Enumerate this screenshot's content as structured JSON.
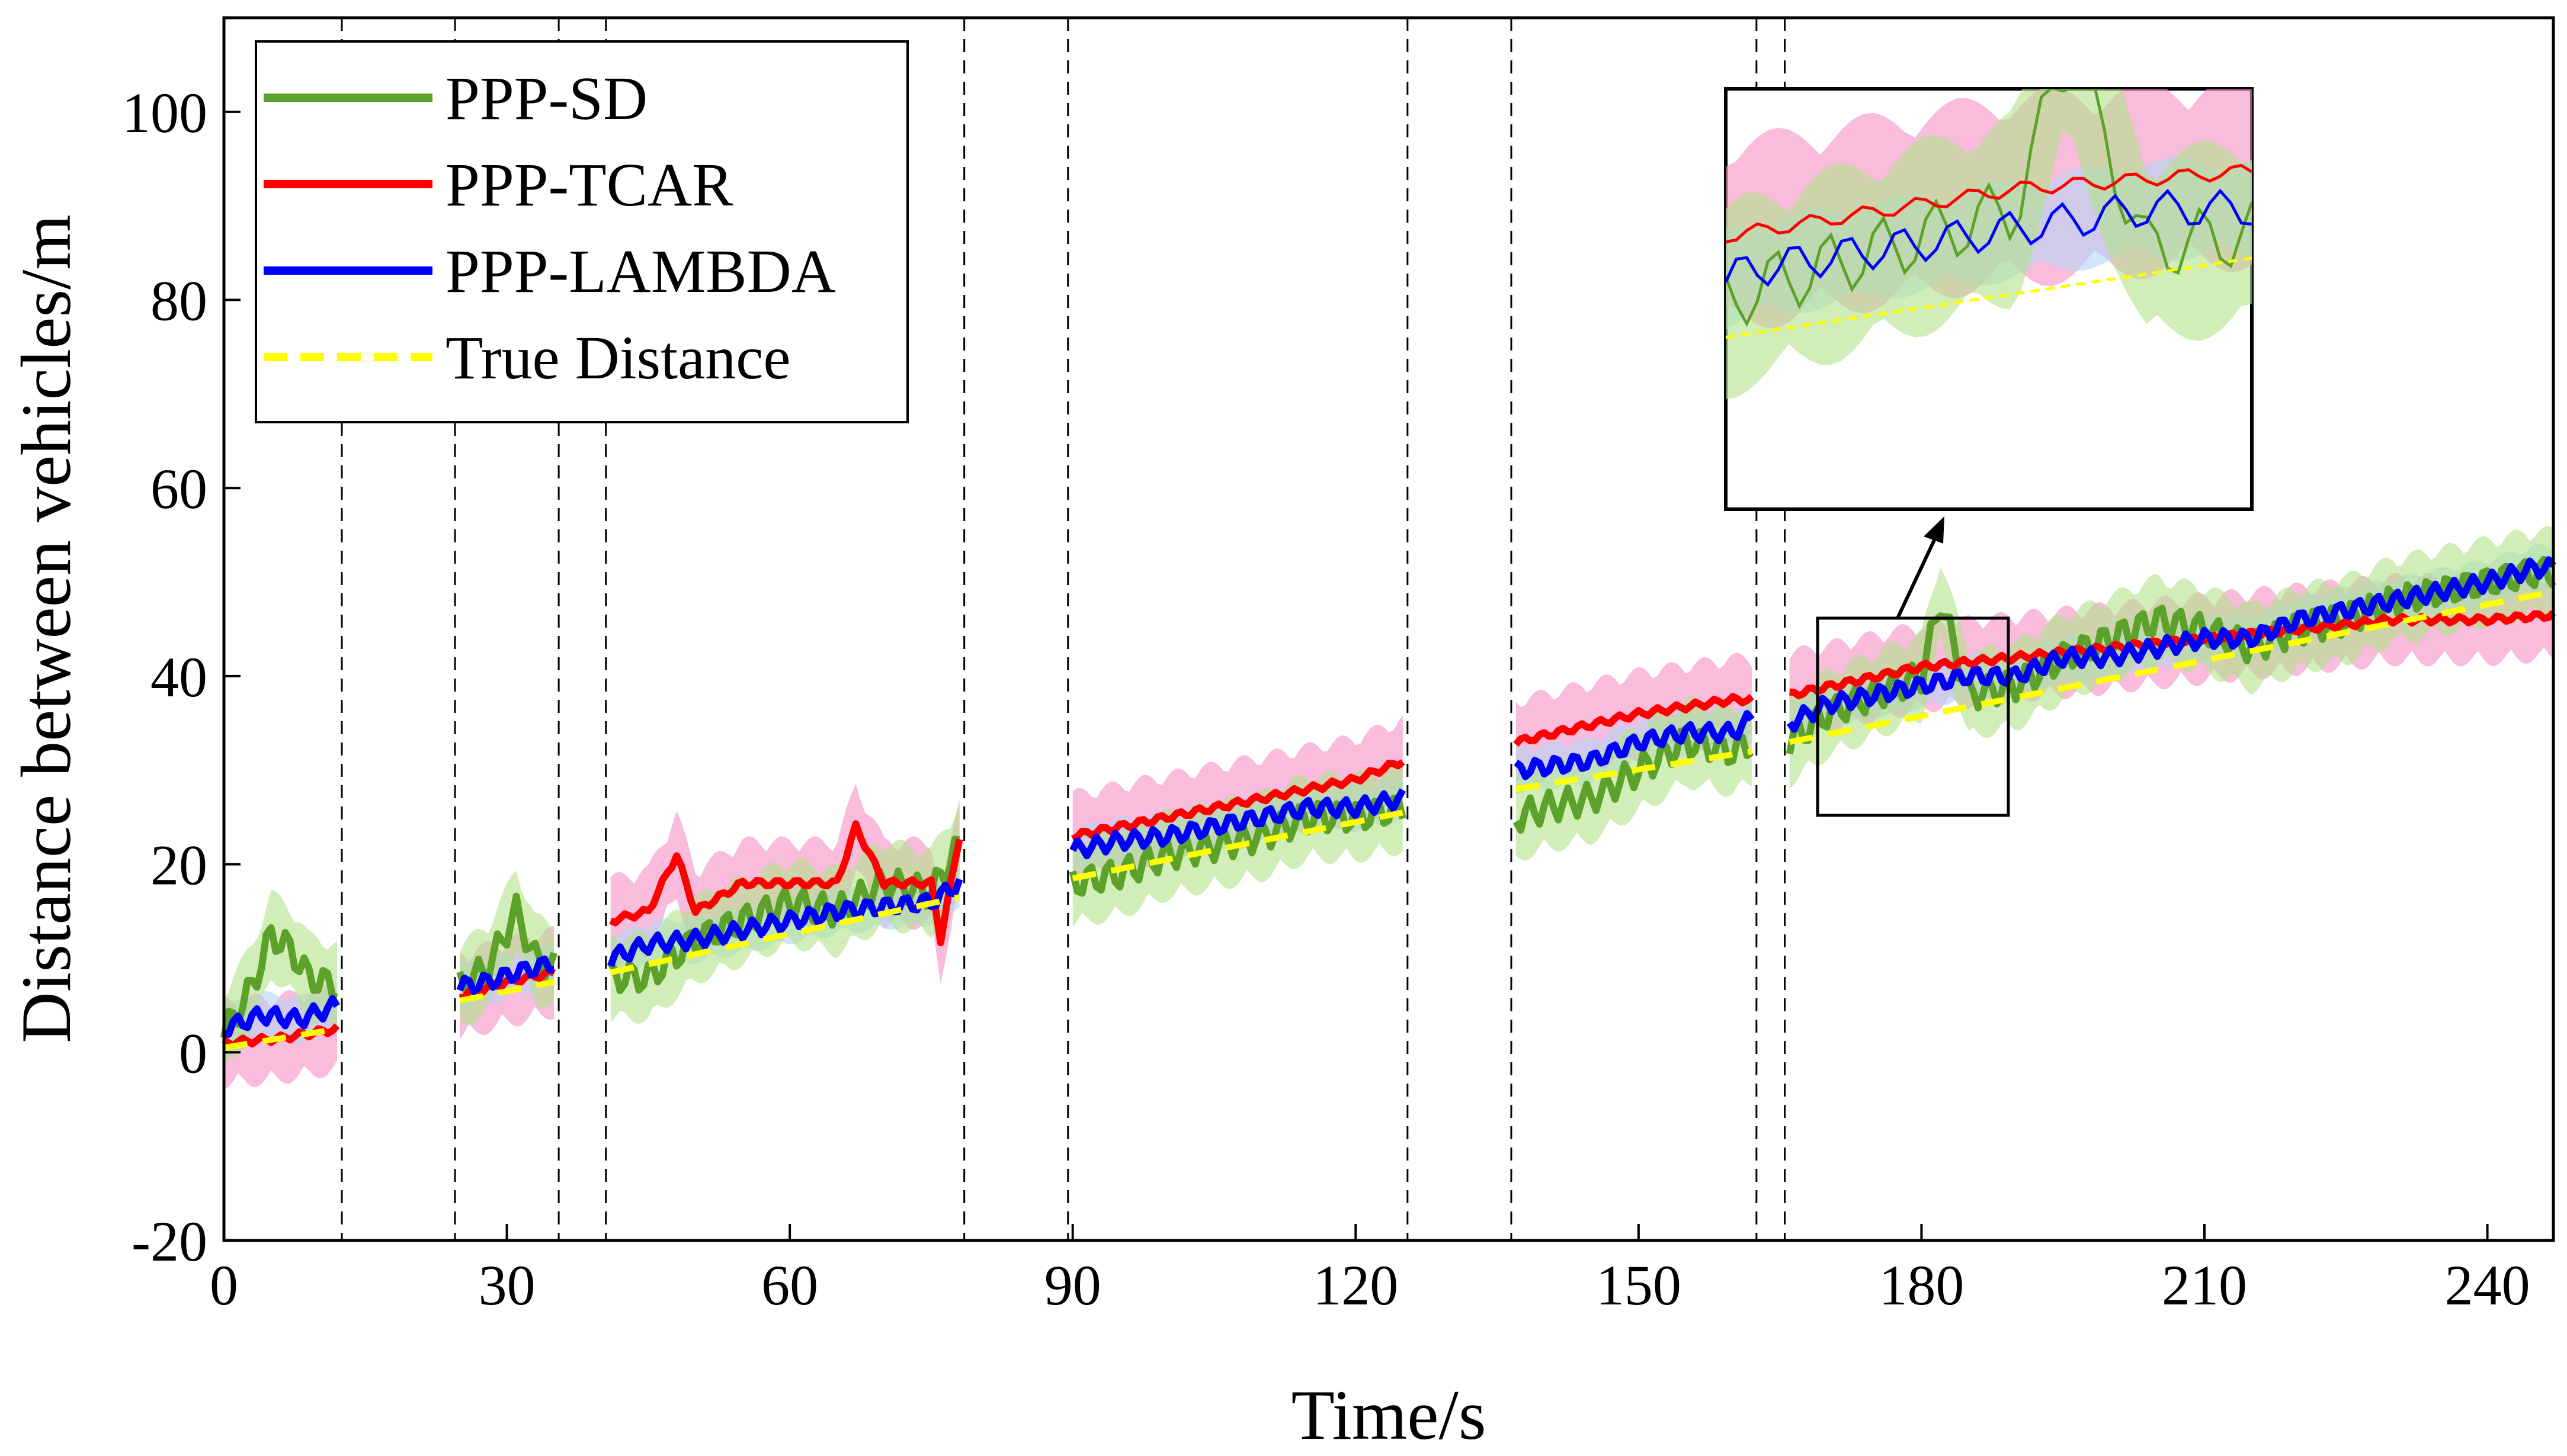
{
  "chart_data": {
    "type": "line",
    "xlabel": "Time/s",
    "ylabel": "Distance between vehicles/m",
    "xlim": [
      0,
      247
    ],
    "ylim": [
      -20,
      110
    ],
    "xticks": [
      "0",
      "30",
      "60",
      "90",
      "120",
      "150",
      "180",
      "210",
      "240"
    ],
    "yticks": [
      "-20",
      "0",
      "20",
      "40",
      "60",
      "80",
      "100"
    ],
    "gaps": [
      [
        12.5,
        24.5
      ],
      [
        35.5,
        40.5
      ],
      [
        78.5,
        89.5
      ],
      [
        125.5,
        136.5
      ],
      [
        162.5,
        165.5
      ]
    ],
    "segments": [
      [
        0,
        12
      ],
      [
        25,
        35
      ],
      [
        41,
        78
      ],
      [
        90,
        125
      ],
      [
        137,
        162
      ],
      [
        166,
        247
      ]
    ],
    "series": [
      {
        "name": "PPP-SD",
        "color": "#5ca12a",
        "band_color": "#b3e38a",
        "style": "solid",
        "points": [
          [
            0,
            2
          ],
          [
            3,
            7
          ],
          [
            5,
            12.5
          ],
          [
            7,
            11
          ],
          [
            9,
            8
          ],
          [
            12,
            7
          ],
          [
            25,
            7
          ],
          [
            28,
            9
          ],
          [
            31,
            15
          ],
          [
            33,
            10
          ],
          [
            35,
            9
          ],
          [
            41,
            8
          ],
          [
            45,
            8
          ],
          [
            50,
            12
          ],
          [
            55,
            14
          ],
          [
            60,
            16
          ],
          [
            65,
            15
          ],
          [
            70,
            18
          ],
          [
            75,
            17
          ],
          [
            78,
            22
          ],
          [
            90,
            18
          ],
          [
            95,
            19
          ],
          [
            100,
            21
          ],
          [
            105,
            22
          ],
          [
            110,
            23
          ],
          [
            115,
            25
          ],
          [
            120,
            25
          ],
          [
            125,
            26
          ],
          [
            137,
            25
          ],
          [
            140,
            26
          ],
          [
            145,
            27
          ],
          [
            150,
            30
          ],
          [
            155,
            33
          ],
          [
            160,
            32
          ],
          [
            162,
            33
          ],
          [
            166,
            33
          ],
          [
            170,
            36
          ],
          [
            175,
            38
          ],
          [
            180,
            40
          ],
          [
            182,
            48
          ],
          [
            185,
            38
          ],
          [
            190,
            39
          ],
          [
            195,
            42
          ],
          [
            200,
            44
          ],
          [
            205,
            46
          ],
          [
            210,
            45
          ],
          [
            215,
            43
          ],
          [
            220,
            45
          ],
          [
            225,
            46
          ],
          [
            230,
            48
          ],
          [
            235,
            49
          ],
          [
            240,
            50
          ],
          [
            245,
            51
          ],
          [
            247,
            51
          ]
        ]
      },
      {
        "name": "PPP-TCAR",
        "color": "#ff0000",
        "band_color": "#f58fc4",
        "style": "solid",
        "points": [
          [
            0,
            1
          ],
          [
            6,
            1.5
          ],
          [
            12,
            2.5
          ],
          [
            25,
            6
          ],
          [
            30,
            7.5
          ],
          [
            35,
            8.5
          ],
          [
            41,
            14
          ],
          [
            45,
            15
          ],
          [
            48,
            21
          ],
          [
            50,
            15
          ],
          [
            55,
            18
          ],
          [
            60,
            18
          ],
          [
            65,
            18
          ],
          [
            67,
            24
          ],
          [
            70,
            18
          ],
          [
            75,
            18
          ],
          [
            76,
            12
          ],
          [
            78,
            23
          ],
          [
            90,
            23
          ],
          [
            100,
            25
          ],
          [
            110,
            27
          ],
          [
            120,
            29
          ],
          [
            125,
            31
          ],
          [
            137,
            33
          ],
          [
            150,
            36
          ],
          [
            160,
            37.5
          ],
          [
            162,
            37.5
          ],
          [
            166,
            38
          ],
          [
            180,
            41
          ],
          [
            190,
            42
          ],
          [
            200,
            43
          ],
          [
            210,
            44
          ],
          [
            220,
            45
          ],
          [
            230,
            46
          ],
          [
            240,
            46
          ],
          [
            247,
            46.5
          ]
        ]
      },
      {
        "name": "PPP-LAMBDA",
        "color": "#0000ff",
        "band_color": "#b4d6f5",
        "style": "solid",
        "points": [
          [
            0,
            2.5
          ],
          [
            4,
            4
          ],
          [
            8,
            3.5
          ],
          [
            12,
            5
          ],
          [
            25,
            7
          ],
          [
            28,
            7.5
          ],
          [
            31,
            8.5
          ],
          [
            35,
            9.5
          ],
          [
            41,
            10
          ],
          [
            45,
            11.5
          ],
          [
            50,
            12
          ],
          [
            55,
            13
          ],
          [
            60,
            14
          ],
          [
            65,
            15
          ],
          [
            70,
            15.5
          ],
          [
            75,
            16
          ],
          [
            78,
            18
          ],
          [
            90,
            21.5
          ],
          [
            95,
            22.5
          ],
          [
            100,
            23
          ],
          [
            105,
            24
          ],
          [
            110,
            25
          ],
          [
            115,
            26
          ],
          [
            120,
            26
          ],
          [
            125,
            27
          ],
          [
            137,
            30
          ],
          [
            145,
            31
          ],
          [
            150,
            33
          ],
          [
            155,
            34
          ],
          [
            160,
            34
          ],
          [
            162,
            35.5
          ],
          [
            166,
            35
          ],
          [
            170,
            37
          ],
          [
            175,
            38
          ],
          [
            180,
            39
          ],
          [
            185,
            40
          ],
          [
            190,
            40
          ],
          [
            195,
            42
          ],
          [
            200,
            42
          ],
          [
            205,
            43
          ],
          [
            210,
            44
          ],
          [
            215,
            44
          ],
          [
            220,
            46
          ],
          [
            225,
            47
          ],
          [
            230,
            48
          ],
          [
            235,
            49
          ],
          [
            240,
            50
          ],
          [
            245,
            51.5
          ],
          [
            247,
            51.5
          ]
        ]
      },
      {
        "name": "True Distance",
        "color": "#ffff00",
        "band_color": null,
        "style": "dashed",
        "points": [
          [
            0,
            0.5
          ],
          [
            12,
            2.5
          ],
          [
            25,
            5.5
          ],
          [
            35,
            7.5
          ],
          [
            41,
            8.5
          ],
          [
            78,
            16.5
          ],
          [
            90,
            18.5
          ],
          [
            125,
            25.5
          ],
          [
            137,
            28
          ],
          [
            162,
            32
          ],
          [
            166,
            33
          ],
          [
            247,
            49
          ]
        ]
      }
    ]
  }
}
